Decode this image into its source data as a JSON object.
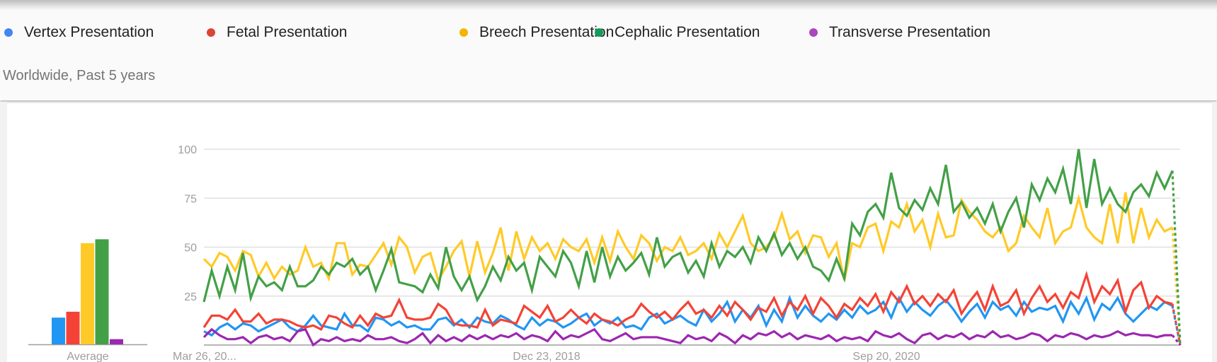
{
  "legend": [
    {
      "label": "Vertex Presentation",
      "color": "#4285f4"
    },
    {
      "label": "Fetal Presentation",
      "color": "#db4437"
    },
    {
      "label": "Breech Presentation",
      "color": "#f4b400"
    },
    {
      "label": "Cephalic Presentation",
      "color": "#0f9d58"
    },
    {
      "label": "Transverse Presentation",
      "color": "#ab47bc"
    }
  ],
  "subtitle": "Worldwide, Past 5 years",
  "chart_data": [
    {
      "type": "bar",
      "categories": [
        "Vertex Presentation",
        "Fetal Presentation",
        "Breech Presentation",
        "Cephalic Presentation",
        "Transverse Presentation"
      ],
      "values": [
        14,
        17,
        52,
        54,
        3
      ],
      "colors": [
        "#2196f3",
        "#f44336",
        "#ffca28",
        "#43a047",
        "#9c27b0"
      ],
      "xlabel": "Average",
      "ylim": [
        0,
        100
      ]
    },
    {
      "type": "line",
      "x_tick_labels": [
        "Mar 26, 20...",
        "Dec 23, 2018",
        "Sep 20, 2020"
      ],
      "y_ticks": [
        25,
        50,
        75,
        100
      ],
      "ylim": [
        0,
        100
      ],
      "grid": true,
      "last_segment_partial": true,
      "series": [
        {
          "name": "Vertex Presentation",
          "color": "#2196f3",
          "values": [
            7,
            5,
            9,
            11,
            8,
            11,
            10,
            7,
            9,
            11,
            13,
            9,
            7,
            10,
            15,
            10,
            9,
            8,
            16,
            10,
            10,
            7,
            14,
            13,
            10,
            12,
            9,
            10,
            8,
            8,
            13,
            14,
            10,
            13,
            9,
            14,
            12,
            11,
            15,
            13,
            10,
            8,
            14,
            10,
            13,
            12,
            9,
            11,
            14,
            16,
            10,
            13,
            11,
            14,
            9,
            10,
            8,
            14,
            16,
            11,
            13,
            15,
            12,
            10,
            18,
            12,
            16,
            22,
            12,
            18,
            14,
            20,
            10,
            18,
            12,
            24,
            14,
            20,
            15,
            12,
            16,
            13,
            18,
            14,
            20,
            16,
            18,
            22,
            14,
            24,
            17,
            22,
            18,
            15,
            20,
            23,
            18,
            12,
            17,
            21,
            14,
            22,
            18,
            20,
            15,
            22,
            17,
            19,
            18,
            20,
            12,
            22,
            16,
            24,
            13,
            21,
            18,
            24,
            16,
            12,
            16,
            20,
            18,
            22,
            20,
            0
          ]
        },
        {
          "name": "Fetal Presentation",
          "color": "#f44336",
          "values": [
            9,
            15,
            15,
            13,
            18,
            12,
            12,
            16,
            11,
            13,
            13,
            12,
            10,
            9,
            10,
            8,
            15,
            14,
            11,
            9,
            15,
            10,
            16,
            14,
            15,
            23,
            14,
            13,
            13,
            14,
            21,
            18,
            11,
            10,
            10,
            9,
            18,
            10,
            13,
            12,
            11,
            20,
            17,
            14,
            20,
            12,
            14,
            18,
            14,
            11,
            16,
            13,
            12,
            10,
            13,
            15,
            21,
            17,
            14,
            17,
            13,
            18,
            22,
            16,
            18,
            14,
            20,
            15,
            22,
            18,
            13,
            19,
            17,
            24,
            15,
            22,
            18,
            25,
            16,
            24,
            20,
            14,
            21,
            18,
            24,
            20,
            26,
            17,
            27,
            22,
            30,
            21,
            25,
            20,
            26,
            22,
            28,
            16,
            22,
            27,
            18,
            30,
            20,
            22,
            28,
            16,
            24,
            30,
            22,
            26,
            19,
            27,
            24,
            36,
            22,
            30,
            26,
            33,
            17,
            28,
            32,
            19,
            25,
            22,
            21,
            0
          ]
        },
        {
          "name": "Breech Presentation",
          "color": "#ffca28",
          "values": [
            44,
            40,
            47,
            45,
            38,
            48,
            46,
            35,
            42,
            34,
            40,
            36,
            38,
            50,
            40,
            42,
            34,
            52,
            52,
            36,
            41,
            40,
            46,
            52,
            41,
            55,
            50,
            37,
            45,
            47,
            33,
            40,
            48,
            53,
            35,
            53,
            37,
            47,
            60,
            38,
            58,
            44,
            55,
            48,
            52,
            44,
            54,
            50,
            48,
            54,
            42,
            55,
            43,
            58,
            50,
            44,
            56,
            52,
            43,
            50,
            48,
            55,
            46,
            48,
            52,
            44,
            57,
            50,
            58,
            66,
            52,
            48,
            50,
            55,
            67,
            54,
            58,
            47,
            56,
            55,
            45,
            52,
            33,
            52,
            50,
            60,
            62,
            48,
            63,
            60,
            72,
            58,
            64,
            50,
            67,
            55,
            56,
            74,
            68,
            64,
            58,
            55,
            60,
            48,
            52,
            66,
            60,
            55,
            70,
            52,
            58,
            60,
            75,
            60,
            55,
            52,
            72,
            52,
            78,
            52,
            70,
            55,
            64,
            58,
            60,
            0
          ]
        },
        {
          "name": "Cephalic Presentation",
          "color": "#43a047",
          "values": [
            22,
            38,
            25,
            40,
            28,
            47,
            24,
            35,
            30,
            32,
            28,
            40,
            30,
            30,
            33,
            40,
            36,
            42,
            40,
            44,
            36,
            40,
            28,
            38,
            49,
            32,
            31,
            30,
            27,
            36,
            29,
            50,
            35,
            28,
            35,
            23,
            30,
            40,
            33,
            45,
            38,
            42,
            28,
            45,
            40,
            35,
            48,
            42,
            30,
            48,
            32,
            50,
            35,
            45,
            38,
            42,
            47,
            36,
            55,
            40,
            45,
            47,
            37,
            43,
            35,
            52,
            40,
            48,
            45,
            50,
            42,
            55,
            48,
            57,
            46,
            52,
            44,
            50,
            40,
            38,
            33,
            44,
            34,
            62,
            56,
            68,
            72,
            65,
            88,
            70,
            66,
            74,
            69,
            80,
            72,
            92,
            68,
            73,
            65,
            70,
            62,
            72,
            58,
            68,
            75,
            60,
            82,
            74,
            85,
            78,
            90,
            72,
            100,
            70,
            95,
            72,
            80,
            72,
            68,
            78,
            82,
            76,
            88,
            80,
            89,
            0
          ]
        },
        {
          "name": "Transverse Presentation",
          "color": "#9c27b0",
          "values": [
            4,
            8,
            5,
            3,
            3,
            4,
            1,
            4,
            5,
            3,
            4,
            2,
            7,
            8,
            0,
            3,
            2,
            4,
            2,
            3,
            2,
            5,
            3,
            3,
            4,
            2,
            1,
            3,
            6,
            1,
            5,
            2,
            4,
            2,
            5,
            3,
            5,
            3,
            5,
            4,
            6,
            3,
            5,
            4,
            2,
            7,
            3,
            5,
            4,
            6,
            8,
            3,
            2,
            4,
            6,
            3,
            4,
            4,
            4,
            3,
            2,
            1,
            5,
            3,
            4,
            2,
            6,
            4,
            1,
            5,
            3,
            6,
            5,
            7,
            4,
            6,
            3,
            5,
            4,
            3,
            5,
            2,
            4,
            3,
            4,
            2,
            7,
            5,
            4,
            6,
            3,
            1,
            5,
            6,
            3,
            5,
            4,
            6,
            3,
            5,
            4,
            7,
            4,
            5,
            3,
            4,
            6,
            5,
            2,
            5,
            4,
            6,
            5,
            3,
            5,
            4,
            5,
            7,
            5,
            6,
            5,
            5,
            4,
            5,
            5,
            0
          ]
        }
      ]
    }
  ]
}
